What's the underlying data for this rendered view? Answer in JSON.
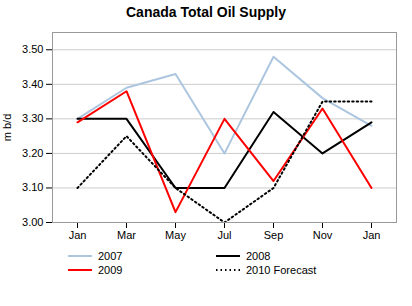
{
  "chart_data": {
    "type": "line",
    "title": "Canada Total Oil Supply",
    "ylabel": "m b/d",
    "categories": [
      "Jan",
      "Mar",
      "May",
      "Jul",
      "Sep",
      "Nov",
      "Jan"
    ],
    "series": [
      {
        "name": "2007",
        "color": "#adc6e0",
        "values": [
          3.3,
          3.39,
          3.43,
          3.2,
          3.48,
          3.36,
          3.28
        ]
      },
      {
        "name": "2008",
        "color": "#000000",
        "values": [
          3.3,
          3.3,
          3.1,
          3.1,
          3.32,
          3.2,
          3.29
        ]
      },
      {
        "name": "2009",
        "color": "#ff0000",
        "values": [
          3.29,
          3.38,
          3.03,
          3.3,
          3.12,
          3.33,
          3.1
        ]
      },
      {
        "name": "2010 Forecast",
        "color": "#000000",
        "line_style": "dotted",
        "values": [
          3.1,
          3.25,
          3.1,
          3.0,
          3.1,
          3.35,
          3.35
        ]
      }
    ],
    "ylim": [
      3.0,
      3.55
    ],
    "yticks": [
      {
        "value": 3.0,
        "label": "3.00"
      },
      {
        "value": 3.1,
        "label": "3.10"
      },
      {
        "value": 3.2,
        "label": "3.20"
      },
      {
        "value": 3.3,
        "label": "3.30"
      },
      {
        "value": 3.4,
        "label": "3.40"
      },
      {
        "value": 3.5,
        "label": "3.50"
      }
    ],
    "grid": true,
    "legend": "bottom"
  }
}
